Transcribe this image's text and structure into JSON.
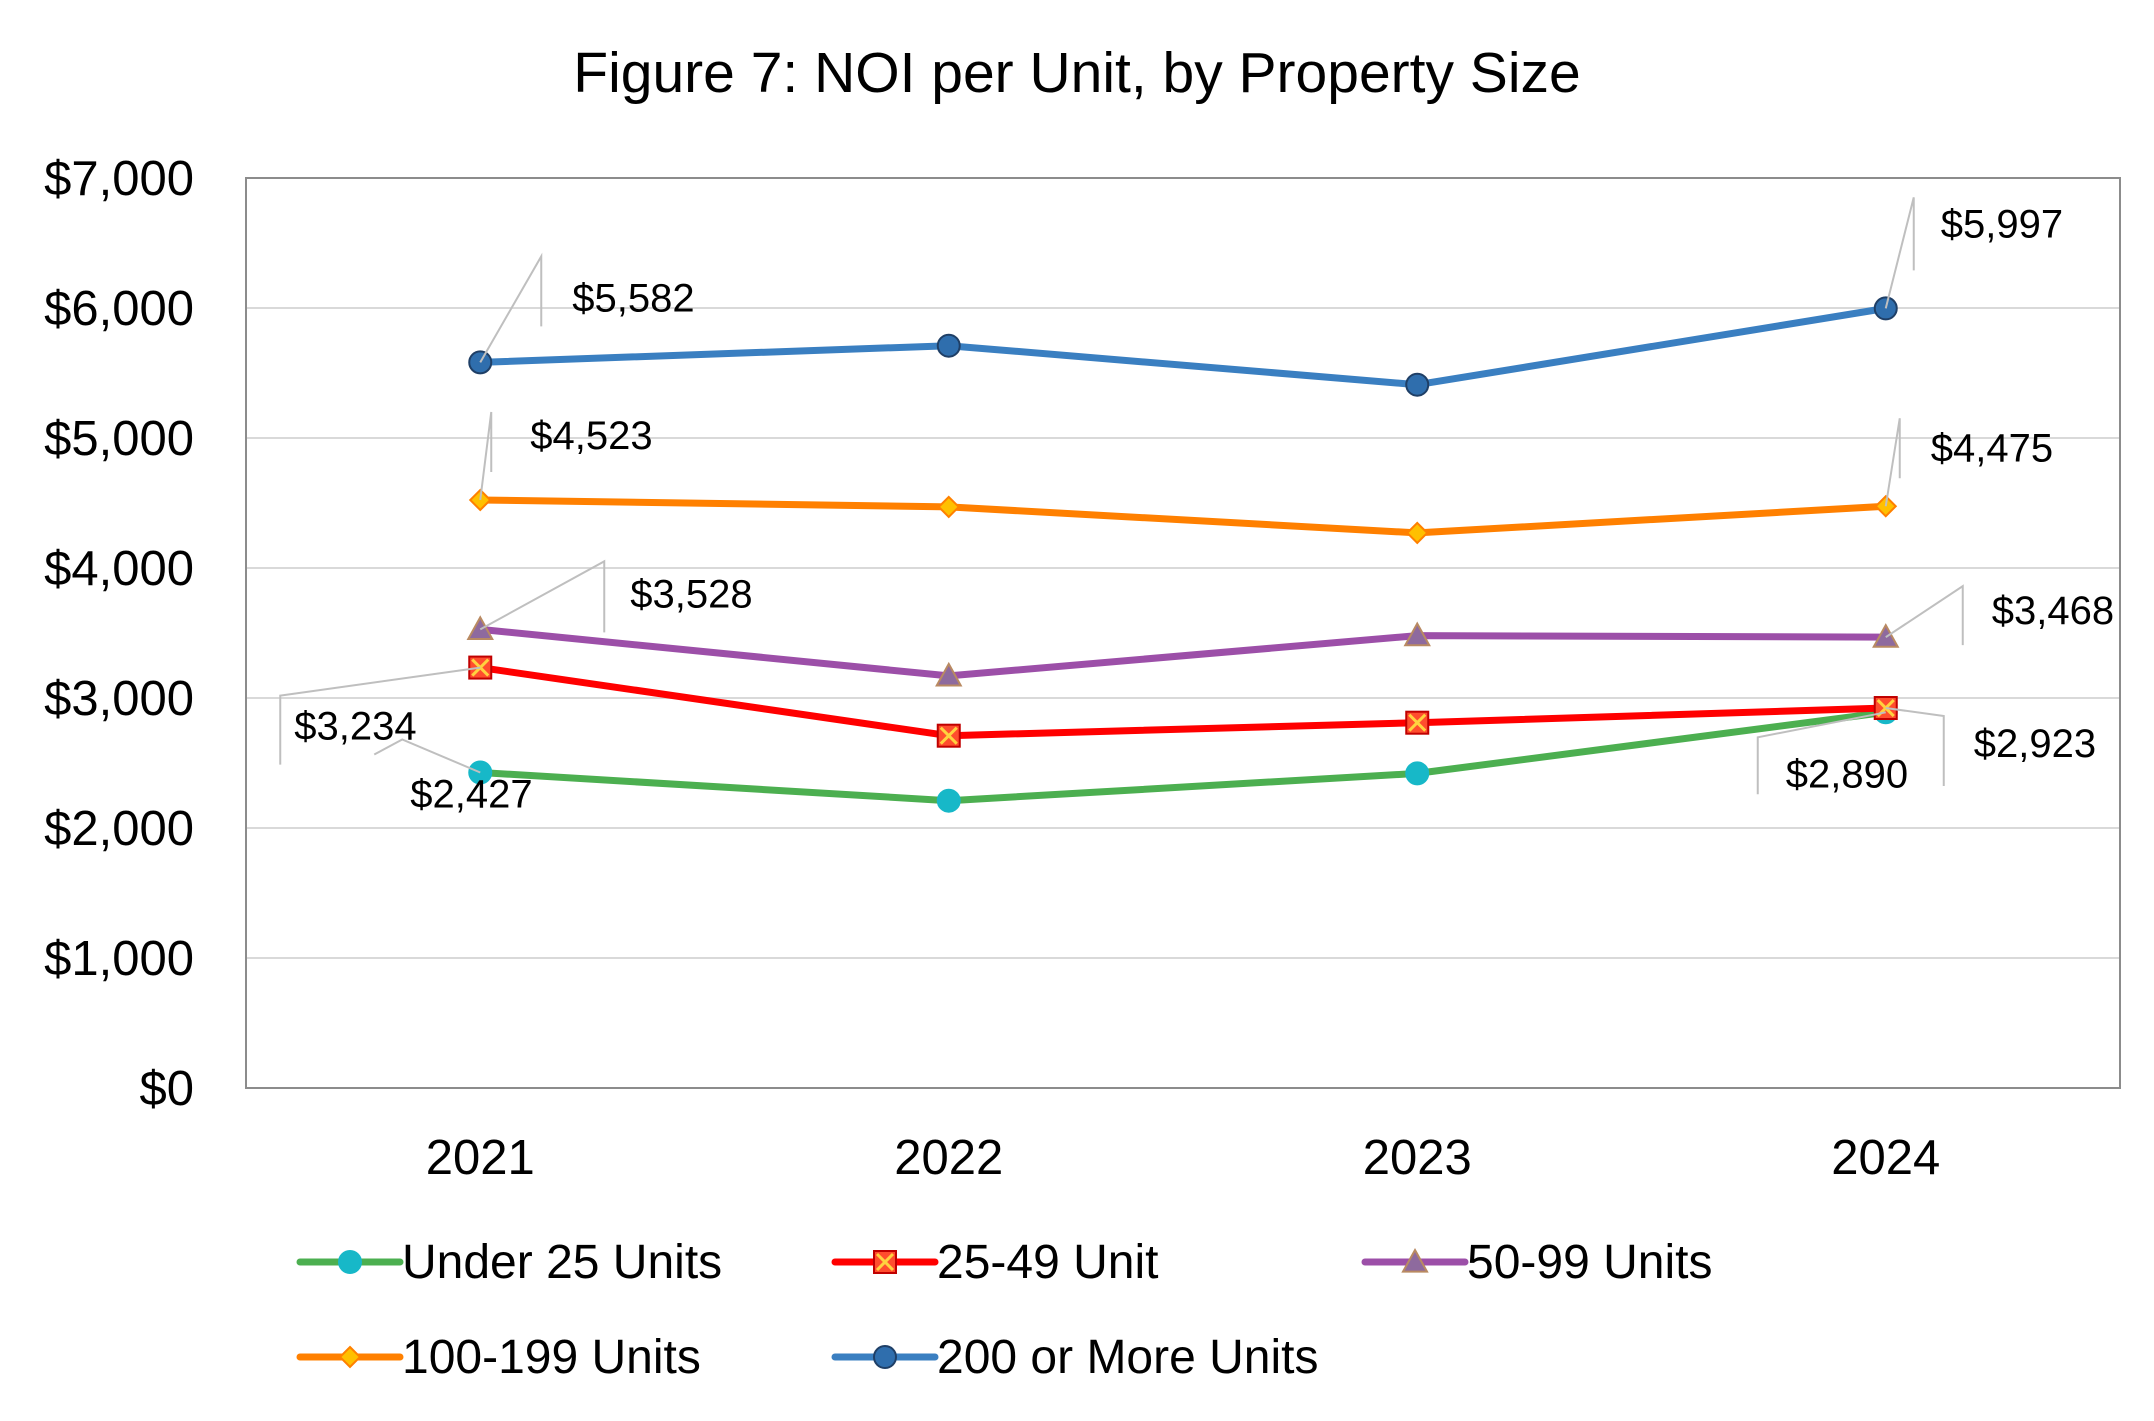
{
  "chart_data": {
    "type": "line",
    "title": "Figure 7: NOI per Unit, by Property Size",
    "xlabel": "",
    "ylabel": "",
    "categories": [
      "2021",
      "2022",
      "2023",
      "2024"
    ],
    "ylim": [
      0,
      7000
    ],
    "yticks": [
      0,
      1000,
      2000,
      3000,
      4000,
      5000,
      6000,
      7000
    ],
    "ytick_labels": [
      "$0",
      "$1,000",
      "$2,000",
      "$3,000",
      "$4,000",
      "$5,000",
      "$6,000",
      "$7,000"
    ],
    "grid": true,
    "legend_position": "bottom",
    "series": [
      {
        "name": "Under 25 Units",
        "values": [
          2427,
          2210,
          2420,
          2890
        ],
        "color": "#4caf50",
        "marker": "circle",
        "marker_color": "#17b8c8",
        "labels": [
          "$2,427",
          null,
          null,
          "$2,890"
        ]
      },
      {
        "name": "25-49 Unit",
        "values": [
          3234,
          2710,
          2810,
          2923
        ],
        "color": "#ff0000",
        "marker": "x-square",
        "marker_color": "#ff0000",
        "labels": [
          "$3,234",
          null,
          null,
          "$2,923"
        ]
      },
      {
        "name": "50-99 Units",
        "values": [
          3528,
          3170,
          3480,
          3468
        ],
        "color": "#9c4fa8",
        "marker": "triangle",
        "marker_color": "#8e6a9e",
        "labels": [
          "$3,528",
          null,
          null,
          "$3,468"
        ]
      },
      {
        "name": "100-199 Units",
        "values": [
          4523,
          4470,
          4270,
          4475
        ],
        "color": "#ff8000",
        "marker": "diamond",
        "marker_color": "#ffc000",
        "labels": [
          "$4,523",
          null,
          null,
          "$4,475"
        ]
      },
      {
        "name": "200 or More Units",
        "values": [
          5582,
          5710,
          5410,
          5997
        ],
        "color": "#3a7fc1",
        "marker": "circle",
        "marker_color": "#2f6ead",
        "labels": [
          "$5,582",
          null,
          null,
          "$5,997"
        ]
      }
    ]
  }
}
